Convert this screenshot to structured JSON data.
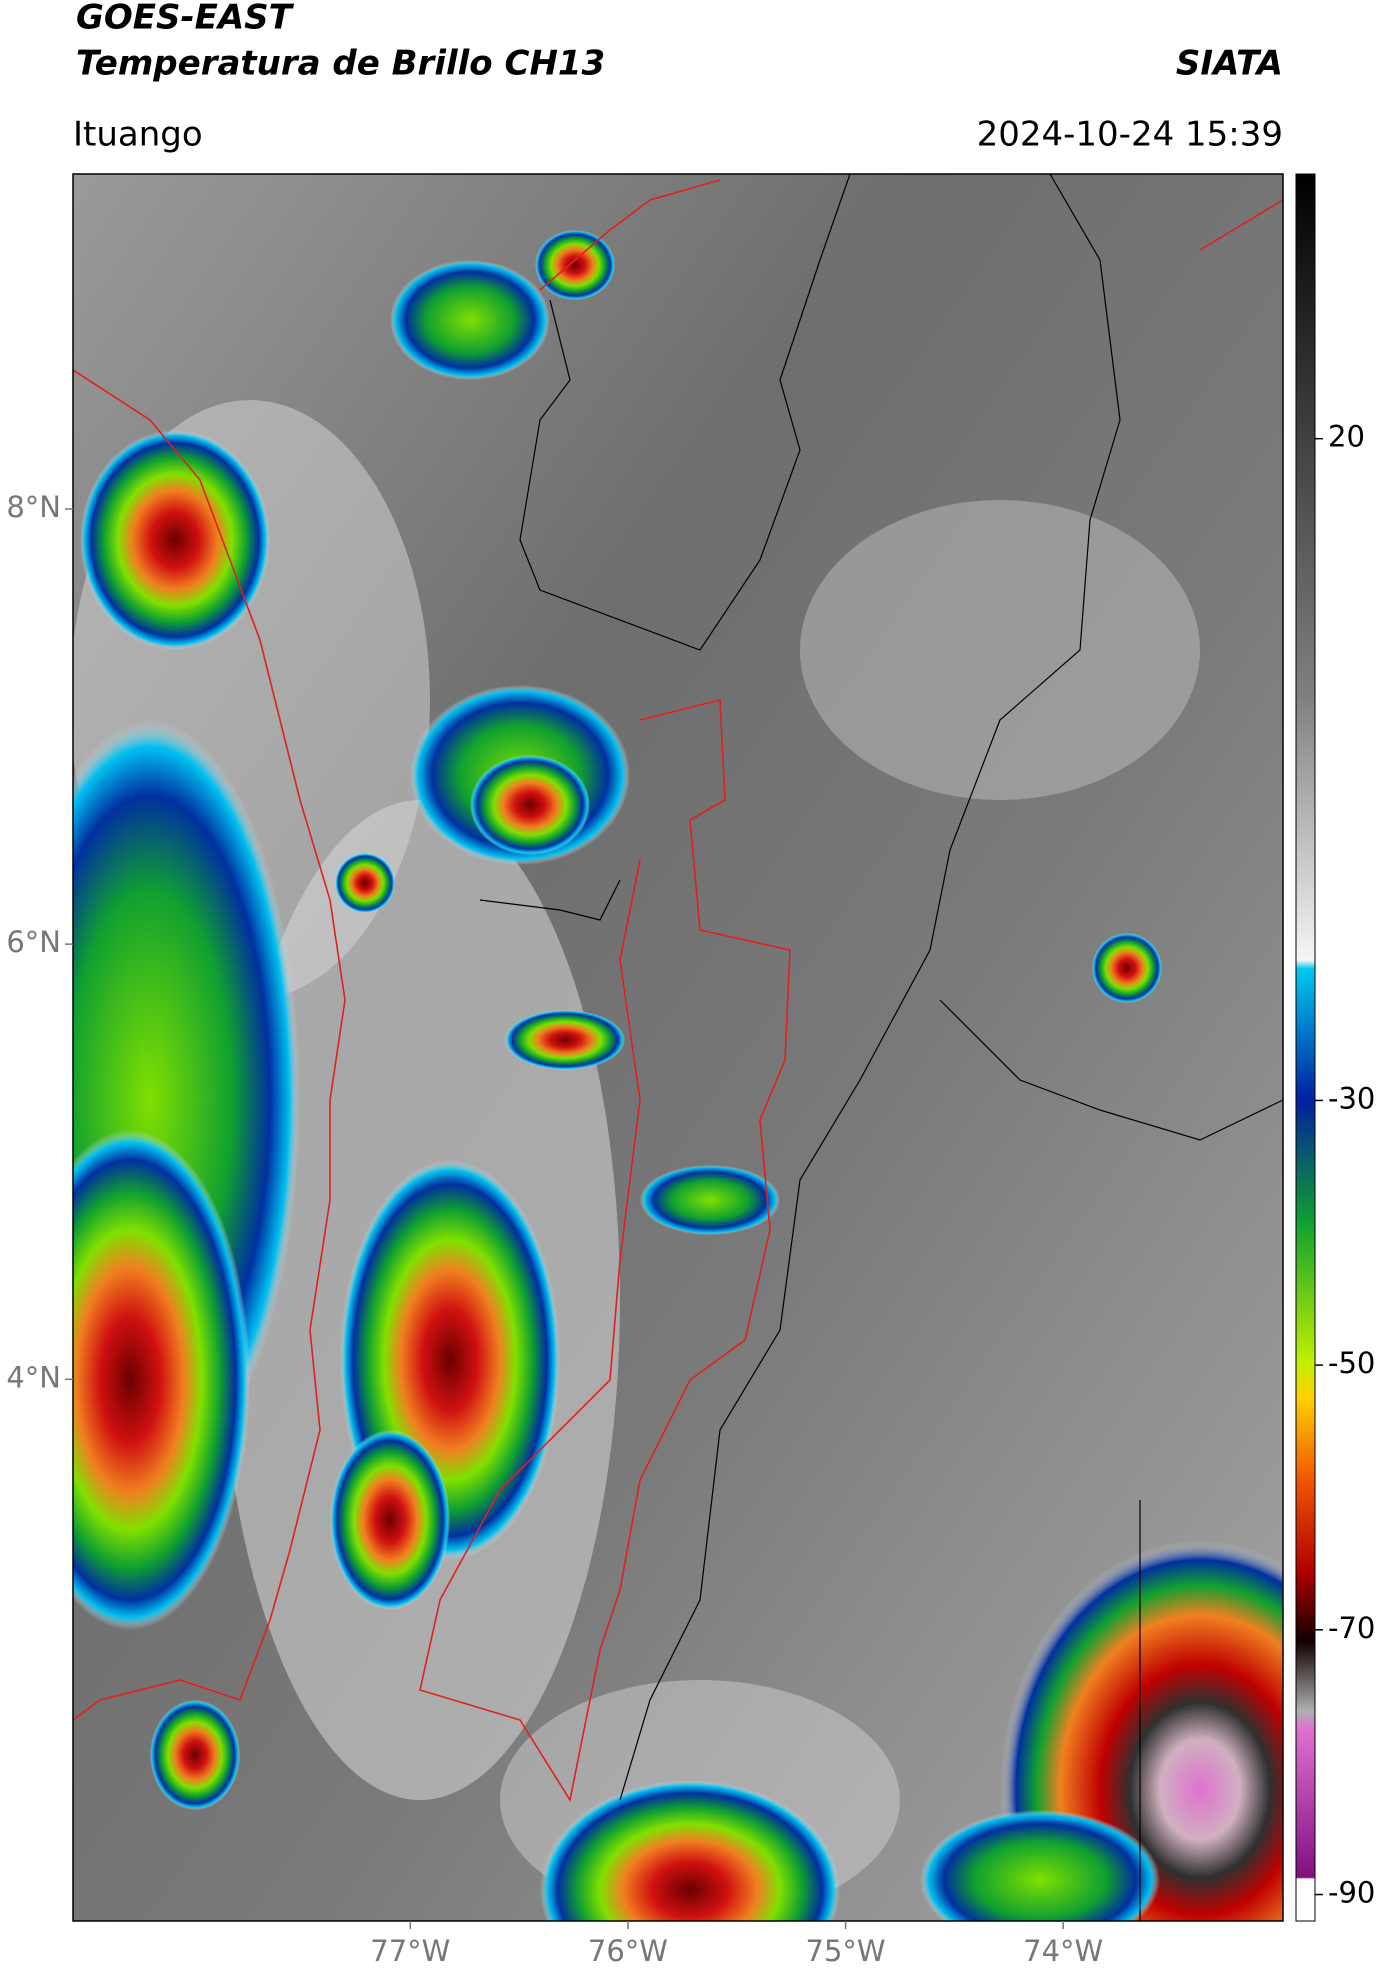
{
  "chart_data": {
    "type": "map",
    "title": "GOES-EAST",
    "subtitle": "Temperatura de Brillo CH13",
    "source": "SIATA",
    "location": "Ituango",
    "datetime": "2024-10-24 15:39",
    "xlim": [
      -78.55,
      -72.99
    ],
    "ylim": [
      1.51,
      9.54
    ],
    "xticks": [
      {
        "value": -77,
        "label": "77°W"
      },
      {
        "value": -76,
        "label": "76°W"
      },
      {
        "value": -75,
        "label": "75°W"
      },
      {
        "value": -74,
        "label": "74°W"
      }
    ],
    "yticks": [
      {
        "value": 8,
        "label": "8°N"
      },
      {
        "value": 6,
        "label": "6°N"
      },
      {
        "value": 4,
        "label": "4°N"
      }
    ],
    "colorbar_lim": [
      -92,
      40
    ],
    "colorbar_ticks": [
      20,
      -30,
      -50,
      -70,
      -90
    ]
  }
}
